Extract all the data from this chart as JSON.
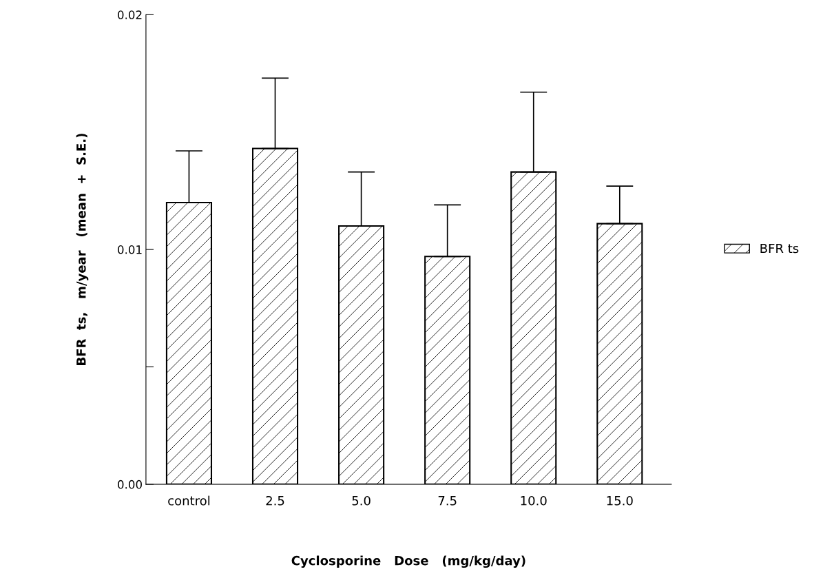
{
  "chart_data": {
    "type": "bar",
    "xlabel": "Cyclosporine   Dose   (mg/kg/day)",
    "ylabel": "BFR  ts,   m/year   (mean  +  S.E.)",
    "categories": [
      "control",
      "2.5",
      "5.0",
      "7.5",
      "10.0",
      "15.0"
    ],
    "series": [
      {
        "name": "BFR ts",
        "color": "#000000",
        "values": [
          0.012,
          0.0143,
          0.011,
          0.0097,
          0.0133,
          0.0111
        ],
        "errors": [
          [
            0.012,
            0.0142
          ],
          [
            0.0143,
            0.0173
          ],
          [
            0.011,
            0.0133
          ],
          [
            0.0097,
            0.0119
          ],
          [
            0.0133,
            0.0167
          ],
          [
            0.0111,
            0.0127
          ]
        ]
      }
    ],
    "ylim": [
      0,
      0.02
    ],
    "yticks": [
      {
        "value": 0,
        "label": "0.00"
      },
      {
        "value": 0.005,
        "label": null
      },
      {
        "value": 0.01,
        "label": "0.01"
      },
      {
        "value": 0.02,
        "label": "0.02"
      }
    ],
    "grid": false,
    "legend": "right"
  }
}
